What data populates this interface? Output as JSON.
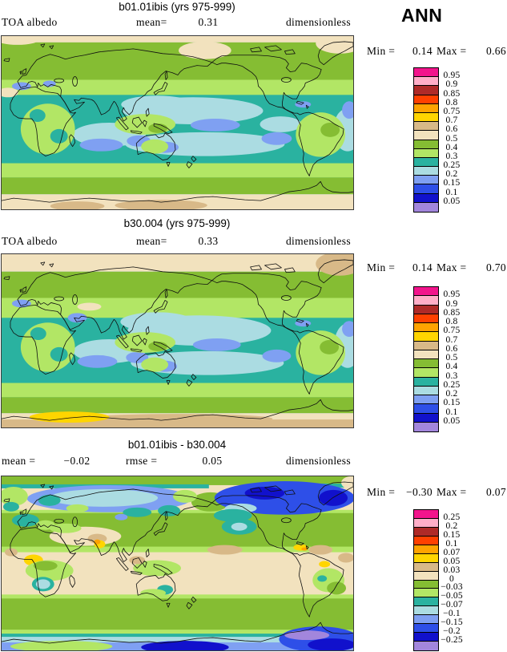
{
  "figure": {
    "season_label": "ANN"
  },
  "palette": [
    "#F2158C",
    "#FFAEC8",
    "#AF2A28",
    "#FF4000",
    "#FFA300",
    "#FFD500",
    "#D8B988",
    "#F2E2BE",
    "#85BD33",
    "#B2E665",
    "#2AB2A0",
    "#ABDCE2",
    "#7FA0F2",
    "#2E4FE8",
    "#1111CC",
    "#A286DC"
  ],
  "panels": [
    {
      "title": "b01.01ibis (yrs 975-999)",
      "var_label": "TOA albedo",
      "stats": {
        "label1": "mean=",
        "value1": "0.31"
      },
      "units": "dimensionless",
      "minmax": {
        "min_label": "Min =",
        "min": "0.14",
        "max_label": "Max =",
        "max": "0.66"
      },
      "levels": [
        "0.95",
        "0.9",
        "0.85",
        "0.8",
        "0.75",
        "0.7",
        "0.6",
        "0.5",
        "0.4",
        "0.3",
        "0.25",
        "0.2",
        "0.15",
        "0.1",
        "0.05"
      ]
    },
    {
      "title": "b30.004 (yrs 975-999)",
      "var_label": "TOA albedo",
      "stats": {
        "label1": "mean=",
        "value1": "0.33"
      },
      "units": "dimensionless",
      "minmax": {
        "min_label": "Min =",
        "min": "0.14",
        "max_label": "Max =",
        "max": "0.70"
      },
      "levels": [
        "0.95",
        "0.9",
        "0.85",
        "0.8",
        "0.75",
        "0.7",
        "0.6",
        "0.5",
        "0.4",
        "0.3",
        "0.25",
        "0.2",
        "0.15",
        "0.1",
        "0.05"
      ]
    },
    {
      "title": "b01.01ibis - b30.004",
      "stats": {
        "label1": "mean =",
        "value1": "−0.02",
        "label2": "rmse =",
        "value2": "0.05"
      },
      "units": "dimensionless",
      "minmax": {
        "min_label": "Min =",
        "min": "−0.30",
        "max_label": "Max =",
        "max": "0.07"
      },
      "levels": [
        "0.25",
        "0.2",
        "0.15",
        "0.1",
        "0.07",
        "0.05",
        "0.03",
        "0",
        "−0.03",
        "−0.05",
        "−0.07",
        "−0.1",
        "−0.15",
        "−0.2",
        "−0.25"
      ]
    }
  ],
  "chart_data": [
    {
      "type": "heatmap",
      "subtype": "filled-contour world map, global lat-lon",
      "title": "b01.01ibis (yrs 975-999)",
      "variable": "TOA albedo",
      "units": "dimensionless",
      "season": "ANN",
      "stats": {
        "mean": 0.31,
        "min": 0.14,
        "max": 0.66
      },
      "contour_levels": [
        0.05,
        0.1,
        0.15,
        0.2,
        0.25,
        0.3,
        0.4,
        0.5,
        0.6,
        0.7,
        0.75,
        0.8,
        0.85,
        0.9,
        0.95
      ],
      "legend_position": "right"
    },
    {
      "type": "heatmap",
      "subtype": "filled-contour world map, global lat-lon",
      "title": "b30.004 (yrs 975-999)",
      "variable": "TOA albedo",
      "units": "dimensionless",
      "season": "ANN",
      "stats": {
        "mean": 0.33,
        "min": 0.14,
        "max": 0.7
      },
      "contour_levels": [
        0.05,
        0.1,
        0.15,
        0.2,
        0.25,
        0.3,
        0.4,
        0.5,
        0.6,
        0.7,
        0.75,
        0.8,
        0.85,
        0.9,
        0.95
      ],
      "legend_position": "right"
    },
    {
      "type": "heatmap",
      "subtype": "difference map (case1 - case2), global lat-lon",
      "title": "b01.01ibis - b30.004",
      "variable": "TOA albedo difference",
      "units": "dimensionless",
      "season": "ANN",
      "stats": {
        "mean": -0.02,
        "rmse": 0.05,
        "min": -0.3,
        "max": 0.07
      },
      "contour_levels": [
        -0.25,
        -0.2,
        -0.15,
        -0.1,
        -0.07,
        -0.05,
        -0.03,
        0,
        0.03,
        0.05,
        0.07,
        0.1,
        0.15,
        0.2,
        0.25
      ],
      "legend_position": "right"
    }
  ]
}
